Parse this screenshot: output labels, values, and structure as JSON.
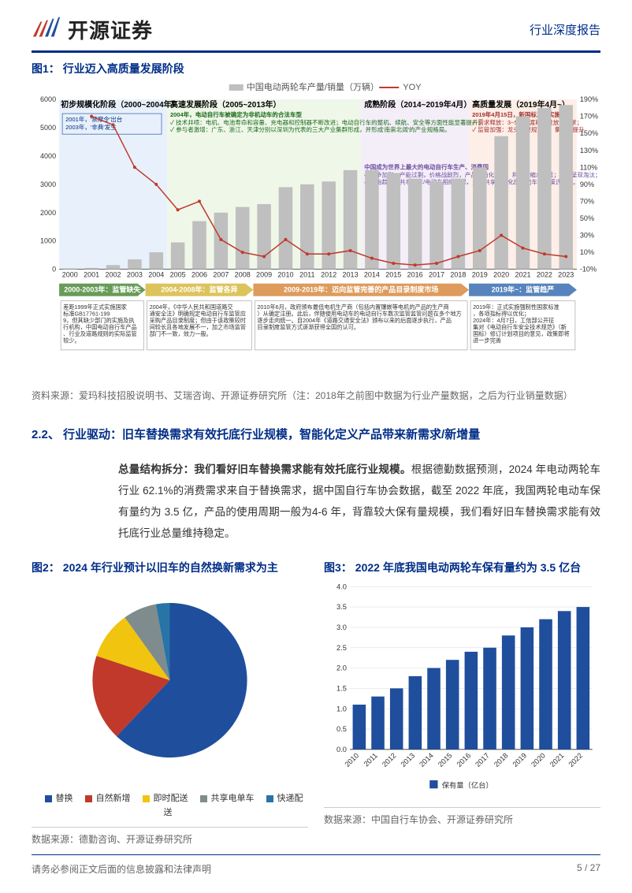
{
  "header": {
    "logo_text": "开源证券",
    "doc_type": "行业深度报告"
  },
  "fig1": {
    "title_prefix": "图1：",
    "title": "行业迈入高质量发展阶段",
    "legend_bar": "中国电动两轮车产量/销量（万辆）",
    "legend_line": "YOY",
    "phases": [
      {
        "label": "初步规模化阶段（2000~2004年）",
        "color_bg": "#d9e8f8"
      },
      {
        "label": "高速发展阶段（2005~2013年）",
        "color_bg": "#e5f2da"
      },
      {
        "label": "成熟阶段（2014~2019年4月）",
        "color_bg": "#ece3f3"
      },
      {
        "label": "高质量发展（2019年4月~）",
        "color_bg": "#fbe4d8"
      }
    ],
    "timeline_arrows": [
      {
        "label": "2000-2003年：监管缺失",
        "color": "#4c8a3a"
      },
      {
        "label": "2004-2008年：监管各异",
        "color": "#d7b93f"
      },
      {
        "label": "2009-2019年：迈向监管完善的产品目录制度市场",
        "color": "#d78a3f"
      },
      {
        "label": "2019年~：监管趋严",
        "color": "#3a6fb0"
      }
    ],
    "years": [
      "2000",
      "2001",
      "2002",
      "2003",
      "2004",
      "2005",
      "2006",
      "2007",
      "2008",
      "2009",
      "2010",
      "2011",
      "2012",
      "2013",
      "2014",
      "2015",
      "2016",
      "2017",
      "2018",
      "2019",
      "2020",
      "2021",
      "2022",
      "2023"
    ],
    "bar_values": [
      29,
      50,
      150,
      350,
      600,
      950,
      1700,
      2000,
      2200,
      2300,
      2900,
      3000,
      3100,
      3500,
      3500,
      3400,
      3200,
      3100,
      3200,
      3600,
      4700,
      5400,
      5700,
      5800
    ],
    "yoy_values": [
      null,
      170,
      160,
      110,
      90,
      60,
      70,
      25,
      10,
      5,
      25,
      8,
      8,
      12,
      3,
      -3,
      -5,
      -3,
      5,
      12,
      30,
      15,
      8,
      5
    ],
    "y_left_max": 6000,
    "y_left_min": 0,
    "y_left_step": 1000,
    "y_right_max": 190,
    "y_right_min": -10,
    "y_right_step": 20,
    "bar_color": "#bfbfbf",
    "line_color": "#c0392b",
    "grid_color": "#e5e5e5",
    "annotations": {
      "blue_box": "2001年，'禁摩令'出台\n2003年，'非典'发生",
      "green_title": "2004年，电动自行车被确定为非机动车的合法车型",
      "green_body": "✓ 技术井喷：电机、电池寿命和容量、充电器和控制器不断改进；电动自行车的整机、续航、安全等方面性能显著提升；\n✓ 参与者激增：广东、浙江、天津分别以深圳为代表的三大产业集群形成，并形成'南崇北阔'的产业规格局。",
      "purple_title": "中国成为世界上最大的电动自行车生产、消费国",
      "purple_body": "✓ 竞争加剧：产能过剩，价格战剧烈，产品同质化严重，利润率缩水明显；行业呈现淘汰；\n✓ 锂电趋势：共享单车/电动车相继兴起，加速共享电动化的电动车行业模式兴起。",
      "red_title": "2019年4月15日，新国标正式实施",
      "red_body": "✓ 需求释放：3~5年过渡期断推放新需求；\n✓ 监管加强：龙头人更规范化，集中度提升",
      "bottom_box1": "差距1999年正式实施国家标准GB17761-1999，但其缺少部门的实施及执行机构，中国电动自行车产品、行业及道路规则的实际监管较少。",
      "bottom_box2": "2004年，《中华人民共和国道路交通安全法》明确规定电动自行车监管应采购产品目录制度；但由于该政策较时间较长且各地发展不一，加之市场监管部门不一致，效力一般。",
      "bottom_box3": "2010年6月，政府颁布最低电机生产商（包括内置镶嵌等电机的产品的生产商）从确定注册。此后，伴随使用电动车的电动自行车数次监管监管问题在多个地方逐步走向统一。自2004年《道路交通安全法》颁布以来的后面逐步执行，产品目录制度监管方式逐渐获得全国的认可。",
      "bottom_box4": "2019年：正式实施强制性国家标准，各项指标得以优化；\n2024年：4月7日，工信部公开征集对《电动自行车安全技术规范》（新国标）修订计划项目的意见，政策即将进一步完善"
    },
    "source": "资料来源：爱玛科技招股说明书、艾瑞咨询、开源证券研究所（注：2018年之前图中数据为行业产量数据，之后为行业销量数据）"
  },
  "section22": {
    "heading": "2.2、 行业驱动：旧车替换需求有效托底行业规模，智能化定义产品带来新需求/新增量",
    "para_bold": "总量结构拆分：我们看好旧车替换需求能有效托底行业规模。",
    "para_rest": "根据德勤数据预测，2024 年电动两轮车行业 62.1%的消费需求来自于替换需求，据中国自行车协会数据，截至 2022 年底，我国两轮电动车保有量约为 3.5 亿，产品的使用周期一般为4-6 年，背靠较大保有量规模，我们看好旧车替换需求能有效托底行业总量维持稳定。"
  },
  "fig2": {
    "title_prefix": "图2：",
    "title": "2024 年行业预计以旧车的自然换新需求为主",
    "type": "pie",
    "segments": [
      {
        "label": "替换",
        "value": 62.1,
        "color": "#1f4e9c"
      },
      {
        "label": "自然新增",
        "value": 18.0,
        "color": "#c0392b"
      },
      {
        "label": "即时配送",
        "value": 10.0,
        "color": "#f1c40f"
      },
      {
        "label": "共享电单车",
        "value": 7.0,
        "color": "#7f8c8d"
      },
      {
        "label": "快递配送",
        "value": 2.9,
        "color": "#2874a6"
      }
    ],
    "source": "数据来源：德勤咨询、开源证券研究所"
  },
  "fig3": {
    "title_prefix": "图3：",
    "title": "2022 年底我国电动两轮车保有量约为 3.5 亿台",
    "type": "bar",
    "years": [
      "2010",
      "2011",
      "2012",
      "2013",
      "2014",
      "2015",
      "2016",
      "2017",
      "2018",
      "2019",
      "2020",
      "2021",
      "2022"
    ],
    "values": [
      1.1,
      1.3,
      1.5,
      1.8,
      2.0,
      2.2,
      2.4,
      2.5,
      2.8,
      3.0,
      3.2,
      3.4,
      3.5
    ],
    "bar_color": "#1f4e9c",
    "ylim": [
      0,
      4.0
    ],
    "ytick_step": 0.5,
    "legend": "保有量（亿台）",
    "grid_color": "#e5e5e5",
    "source": "数据来源：中国自行车协会、开源证券研究所"
  },
  "footer": {
    "disclaimer": "请务必参阅正文后面的信息披露和法律声明",
    "page": "5 / 27"
  }
}
